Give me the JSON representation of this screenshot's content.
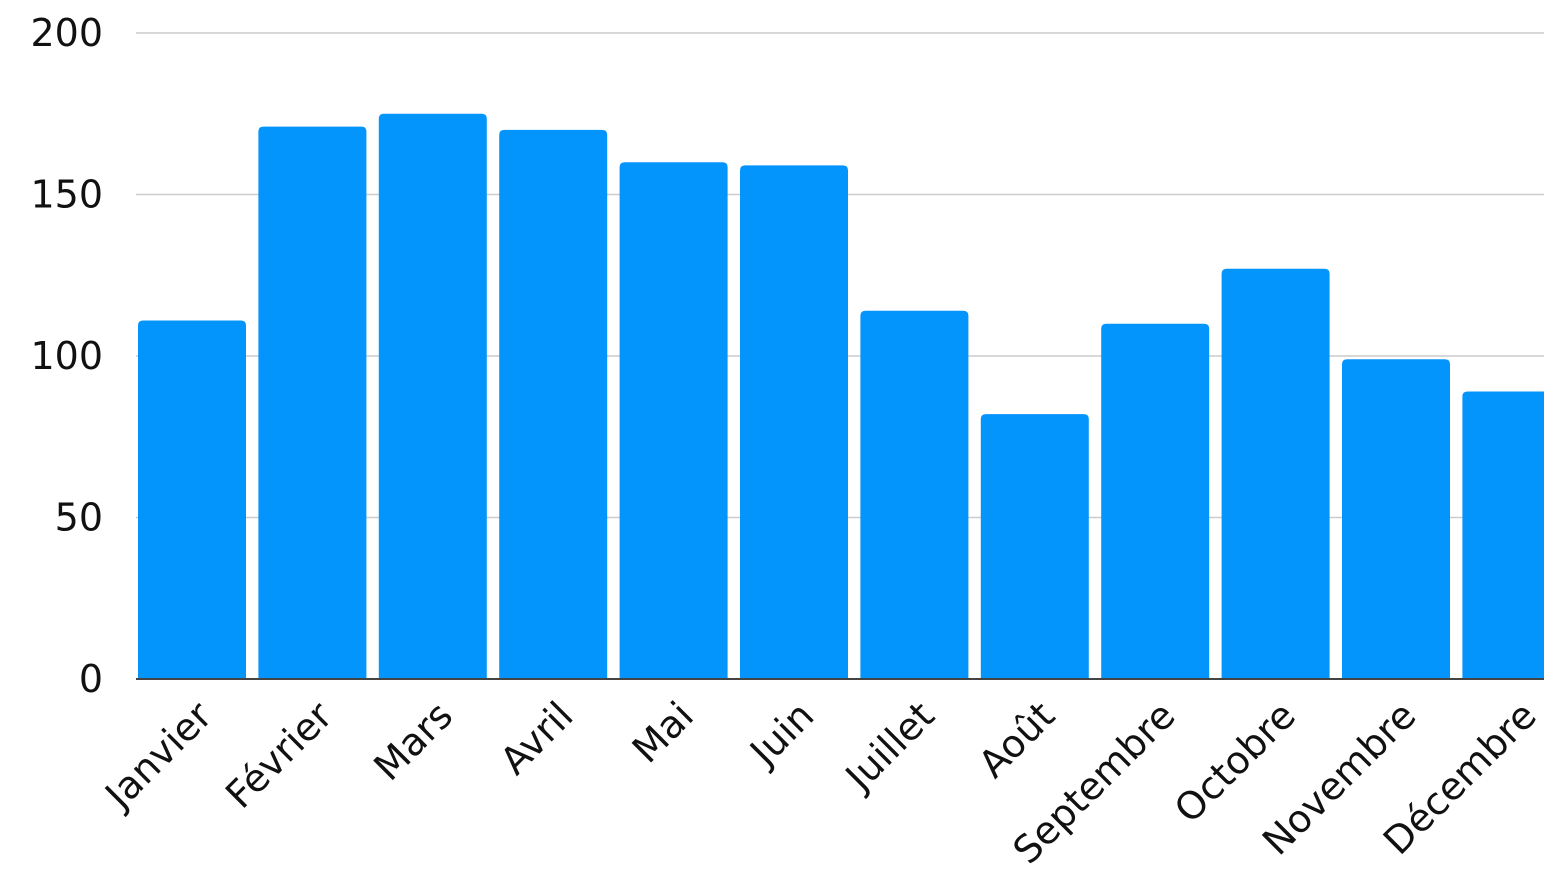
{
  "chart_data": {
    "type": "bar",
    "categories": [
      "Janvier",
      "Février",
      "Mars",
      "Avril",
      "Mai",
      "Juin",
      "Juillet",
      "Août",
      "Septembre",
      "Octobre",
      "Novembre",
      "Décembre"
    ],
    "values": [
      111,
      171,
      175,
      170,
      160,
      159,
      114,
      82,
      110,
      127,
      99,
      89
    ],
    "title": "",
    "xlabel": "",
    "ylabel": "",
    "ylim": [
      0,
      200
    ],
    "yticks": [
      0,
      50,
      100,
      150,
      200
    ],
    "grid": true,
    "legend": "none",
    "colors": {
      "bar": "#0394fc",
      "grid": "#cccccc",
      "axis": "#444444",
      "text": "#111111"
    }
  }
}
